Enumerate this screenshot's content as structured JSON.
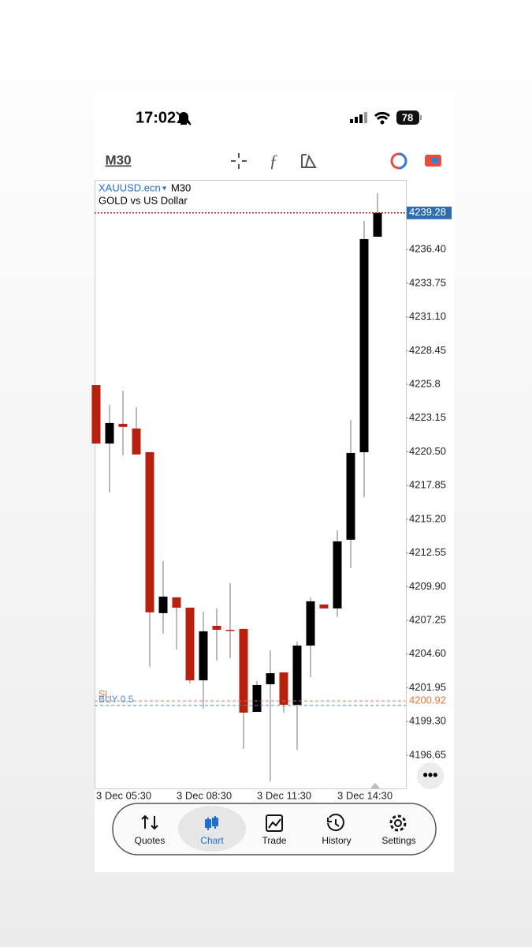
{
  "status_bar": {
    "time": "17:02",
    "battery": "78"
  },
  "toolbar": {
    "timeframe": "M30"
  },
  "chart_data": {
    "type": "candlestick",
    "symbol": "XAUUSD.ecn",
    "timeframe": "M30",
    "description": "GOLD vs US Dollar",
    "categories": [
      "3 Dec 05:30",
      null,
      null,
      null,
      null,
      null,
      "3 Dec 08:30",
      null,
      null,
      null,
      null,
      null,
      "3 Dec 11:30",
      null,
      null,
      null,
      null,
      null,
      "3 Dec 14:30",
      null,
      null,
      null
    ],
    "open": [
      4225.74,
      4221.15,
      4222.7,
      4222.33,
      4220.47,
      4207.82,
      4209.06,
      4208.25,
      4202.54,
      4206.82,
      4206.51,
      4206.58,
      4200.06,
      4202.23,
      4203.16,
      4200.62,
      4205.27,
      4208.5,
      4208.19,
      4213.59,
      4220.47,
      4237.41
    ],
    "high": [
      4225.74,
      4224.19,
      4225.31,
      4224.01,
      4220.47,
      4211.91,
      4209.06,
      4208.25,
      4207.94,
      4208.19,
      4210.17,
      4206.58,
      4202.48,
      4204.9,
      4203.16,
      4205.58,
      4209.06,
      4208.5,
      4214.33,
      4223.01,
      4238.65,
      4240.82
    ],
    "low": [
      4221.15,
      4217.31,
      4220.22,
      4220.29,
      4203.6,
      4206.2,
      4204.96,
      4202.3,
      4200.31,
      4204.09,
      4204.28,
      4197.15,
      4200.06,
      4194.6,
      4200.0,
      4197.08,
      4202.79,
      4208.19,
      4207.51,
      4211.35,
      4216.94,
      4237.41
    ],
    "close": [
      4221.15,
      4222.77,
      4222.46,
      4220.29,
      4207.88,
      4209.12,
      4208.25,
      4202.54,
      4206.39,
      4206.51,
      4206.45,
      4200.0,
      4202.17,
      4203.1,
      4200.62,
      4205.27,
      4208.75,
      4208.19,
      4213.46,
      4220.41,
      4237.22,
      4239.28
    ],
    "up_color": "#000000",
    "down_color": "#b8200e",
    "ylim": [
      4193.98,
      4241.87
    ],
    "yticks": [
      {
        "value": 4236.4,
        "label": "4236.40"
      },
      4233.75,
      {
        "value": 4231.1,
        "label": "4231.10"
      },
      4228.45,
      4225.8,
      4223.15,
      {
        "value": 4220.5,
        "label": "4220.50"
      },
      4217.85,
      {
        "value": 4215.2,
        "label": "4215.20"
      },
      4212.55,
      {
        "value": 4209.9,
        "label": "4209.90"
      },
      4207.25,
      {
        "value": 4204.6,
        "label": "4204.60"
      },
      4201.95,
      {
        "value": 4199.3,
        "label": "4199.30"
      },
      4196.65
    ],
    "price_line": {
      "value": 4239.28,
      "color": "#b71c1c"
    },
    "order_lines": [
      {
        "label": "SL",
        "value": 4200.92,
        "color": "#e8743b"
      },
      {
        "label": "BUY 0.5",
        "value": 4200.56,
        "color": "#4a8fe0"
      }
    ],
    "grid": false
  },
  "nav": {
    "items": [
      "Quotes",
      "Chart",
      "Trade",
      "History",
      "Settings"
    ],
    "active": 1
  }
}
